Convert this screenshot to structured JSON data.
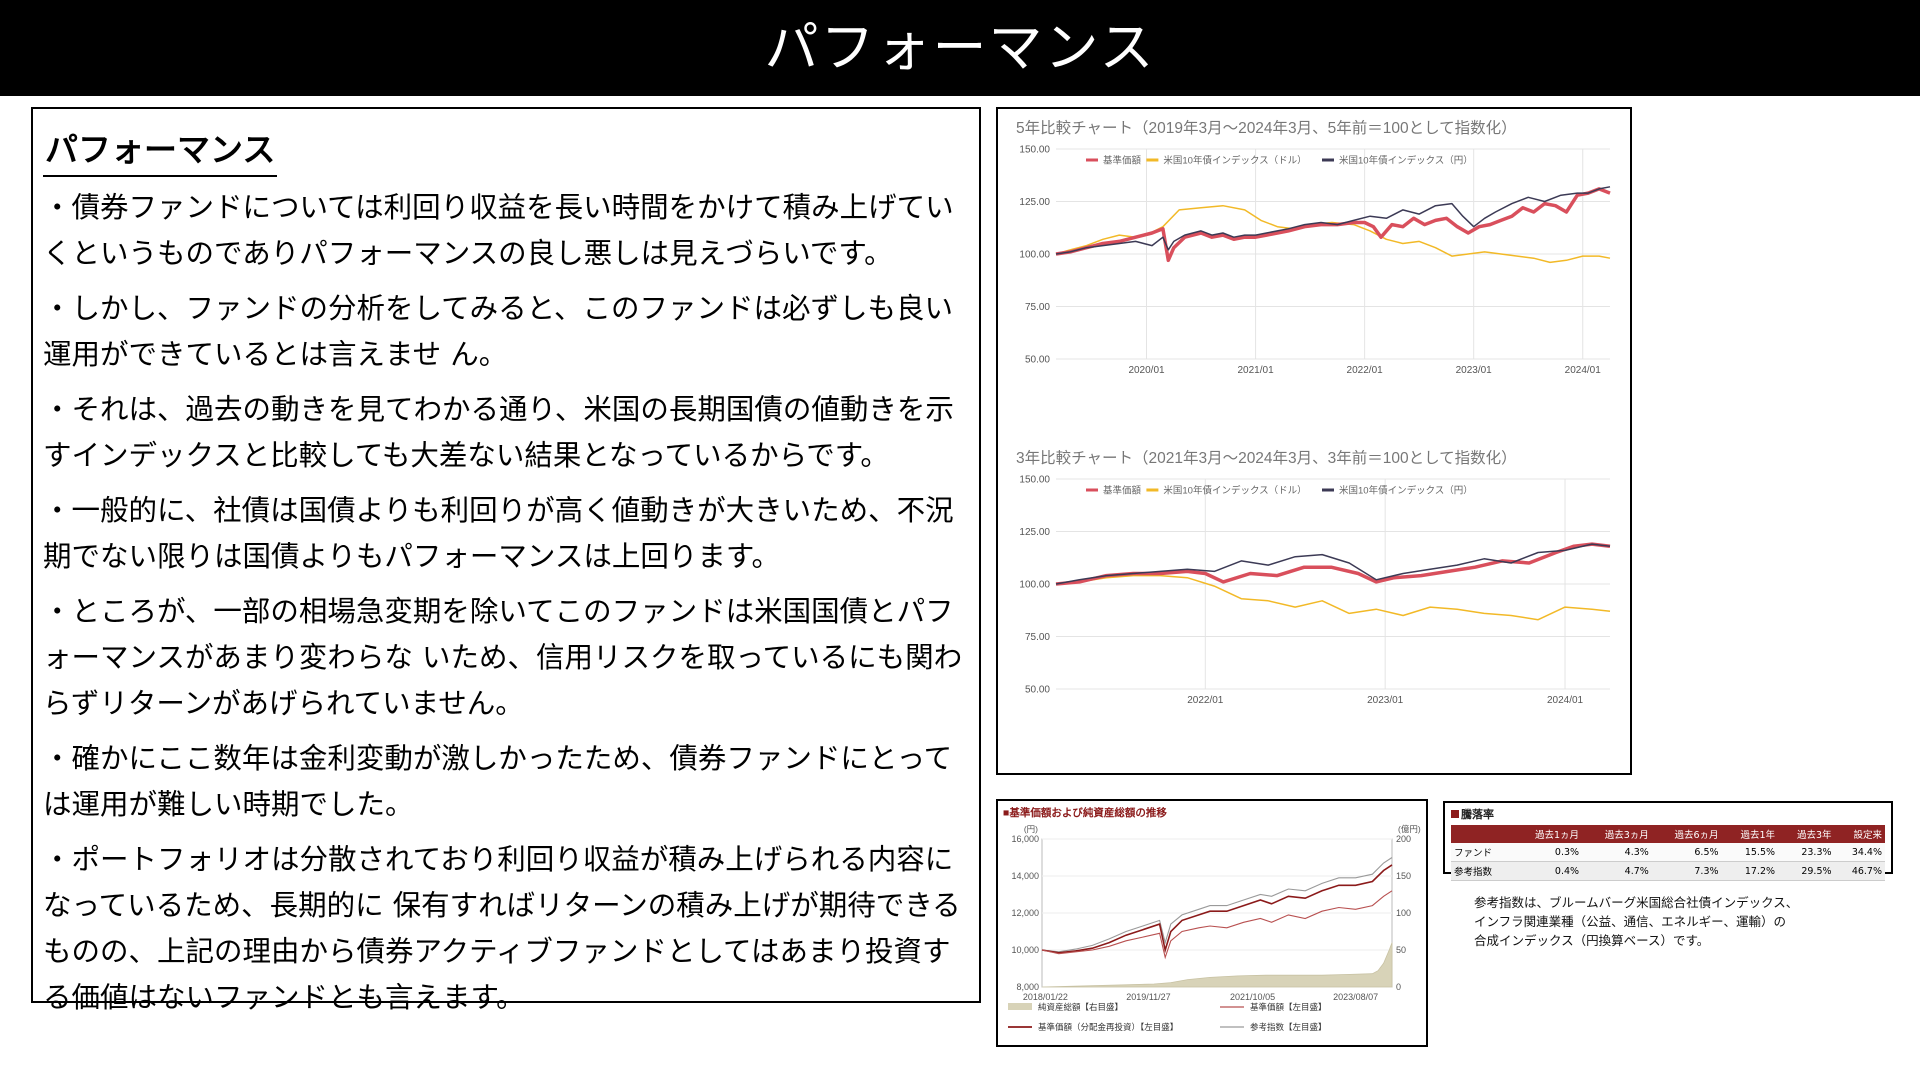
{
  "banner": {
    "title": "パフォーマンス"
  },
  "text": {
    "heading": "パフォーマンス",
    "paragraphs": [
      "・債券ファンドについては利回り収益を長い時間をかけて積み上げていくというものでありパフォーマンスの良し悪しは見えづらいです。",
      "・しかし、ファンドの分析をしてみると、このファンドは必ずしも良い運用ができているとは言えませ ん。",
      "・それは、過去の動きを見てわかる通り、米国の長期国債の値動きを示すインデックスと比較しても大差ない結果となっているからです。",
      "・一般的に、社債は国債よりも利回りが高く値動きが大きいため、不況期でない限りは国債よりもパフォーマンスは上回ります。",
      "・ところが、一部の相場急変期を除いてこのファンドは米国国債とパフォーマンスがあまり変わらな いため、信用リスクを取っているにも関わらずリターンがあげられていません。",
      "・確かにここ数年は金利変動が激しかったため、債券ファンドにとっては運用が難しい時期でした。",
      "・ポートフォリオは分散されており利回り収益が積み上げられる内容になっているため、長期的に 保有すればリターンの積み上げが期待できるものの、上記の理由から債券アクティブファンドとしてはあまり投資する価値はないファンドとも言えます。"
    ]
  },
  "colors": {
    "fund": "#d94f5c",
    "usd_index": "#f2b927",
    "jpy_index": "#3c3a55",
    "nav_red": "#8b1a1a",
    "asset_fill": "#d8d3b8"
  },
  "chart_data": [
    {
      "type": "line",
      "title": "5年比較チャート（2019年3月〜2024年3月、5年前＝100として指数化）",
      "ylim": [
        50,
        150
      ],
      "yticks": [
        "150.00",
        "125.00",
        "100.00",
        "75.00",
        "50.00"
      ],
      "ytick_values": [
        150,
        125,
        100,
        75,
        50
      ],
      "xticks": [
        {
          "label": "2020/01",
          "x": 2020.0
        },
        {
          "label": "2021/01",
          "x": 2021.0
        },
        {
          "label": "2022/01",
          "x": 2022.0
        },
        {
          "label": "2023/01",
          "x": 2023.0
        },
        {
          "label": "2024/01",
          "x": 2024.0
        }
      ],
      "xlim": [
        2019.17,
        2024.25
      ],
      "grid": true,
      "legend_position": "top-left",
      "series": [
        {
          "name": "基準価額",
          "color": "#d94f5c",
          "width": 3.5,
          "x": [
            2019.17,
            2019.3,
            2019.45,
            2019.6,
            2019.75,
            2019.9,
            2020.05,
            2020.15,
            2020.2,
            2020.25,
            2020.35,
            2020.5,
            2020.6,
            2020.7,
            2020.8,
            2020.9,
            2021.0,
            2021.1,
            2021.2,
            2021.3,
            2021.45,
            2021.6,
            2021.75,
            2021.9,
            2022.0,
            2022.08,
            2022.15,
            2022.25,
            2022.35,
            2022.45,
            2022.55,
            2022.65,
            2022.75,
            2022.85,
            2022.95,
            2023.05,
            2023.15,
            2023.25,
            2023.35,
            2023.45,
            2023.55,
            2023.65,
            2023.75,
            2023.85,
            2023.95,
            2024.05,
            2024.15,
            2024.25
          ],
          "y": [
            100,
            101,
            103,
            105,
            106,
            108,
            110,
            112,
            97,
            103,
            108,
            110,
            108,
            109,
            107,
            108,
            108,
            109,
            110,
            111,
            113,
            114,
            114,
            115,
            115,
            113,
            108,
            114,
            113,
            117,
            114,
            116,
            117,
            113,
            110,
            113,
            114,
            116,
            118,
            122,
            120,
            124,
            123,
            120,
            128,
            129,
            131,
            129
          ]
        },
        {
          "name": "米国10年債インデックス（ドル）",
          "color": "#f2b927",
          "width": 1.5,
          "x": [
            2019.17,
            2019.3,
            2019.45,
            2019.6,
            2019.75,
            2019.9,
            2020.0,
            2020.15,
            2020.3,
            2020.5,
            2020.7,
            2020.9,
            2021.05,
            2021.2,
            2021.35,
            2021.5,
            2021.7,
            2021.9,
            2022.05,
            2022.2,
            2022.35,
            2022.5,
            2022.65,
            2022.8,
            2022.95,
            2023.1,
            2023.25,
            2023.4,
            2023.55,
            2023.7,
            2023.85,
            2024.0,
            2024.15,
            2024.25
          ],
          "y": [
            100,
            102,
            104,
            107,
            109,
            108,
            109,
            113,
            121,
            122,
            123,
            121,
            116,
            113,
            112,
            114,
            115,
            114,
            111,
            107,
            105,
            106,
            103,
            99,
            100,
            101,
            100,
            99,
            98,
            96,
            97,
            99,
            99,
            98
          ]
        },
        {
          "name": "米国10年債インデックス（円）",
          "color": "#3c3a55",
          "width": 1.5,
          "x": [
            2019.17,
            2019.3,
            2019.45,
            2019.6,
            2019.75,
            2019.9,
            2020.05,
            2020.15,
            2020.2,
            2020.25,
            2020.35,
            2020.5,
            2020.6,
            2020.7,
            2020.8,
            2020.9,
            2021.0,
            2021.1,
            2021.2,
            2021.3,
            2021.45,
            2021.6,
            2021.75,
            2021.9,
            2022.05,
            2022.2,
            2022.35,
            2022.5,
            2022.65,
            2022.8,
            2022.9,
            2023.0,
            2023.1,
            2023.2,
            2023.35,
            2023.5,
            2023.65,
            2023.8,
            2023.95,
            2024.05,
            2024.15,
            2024.25
          ],
          "y": [
            100,
            101,
            103,
            104,
            105,
            106,
            104,
            108,
            102,
            106,
            109,
            111,
            109,
            110,
            108,
            109,
            109,
            110,
            111,
            112,
            114,
            115,
            114,
            116,
            118,
            117,
            121,
            119,
            123,
            124,
            118,
            113,
            117,
            120,
            124,
            127,
            125,
            128,
            129,
            129,
            131,
            132
          ]
        }
      ]
    },
    {
      "type": "line",
      "title": "3年比較チャート（2021年3月〜2024年3月、3年前＝100として指数化）",
      "ylim": [
        50,
        150
      ],
      "yticks": [
        "150.00",
        "125.00",
        "100.00",
        "75.00",
        "50.00"
      ],
      "ytick_values": [
        150,
        125,
        100,
        75,
        50
      ],
      "xticks": [
        {
          "label": "2022/01",
          "x": 2022.0
        },
        {
          "label": "2023/01",
          "x": 2023.0
        },
        {
          "label": "2024/01",
          "x": 2024.0
        }
      ],
      "xlim": [
        2021.17,
        2024.25
      ],
      "grid": true,
      "legend_position": "top-left",
      "series": [
        {
          "name": "基準価額",
          "color": "#d94f5c",
          "width": 3.5,
          "x": [
            2021.17,
            2021.3,
            2021.45,
            2021.6,
            2021.75,
            2021.9,
            2022.0,
            2022.1,
            2022.25,
            2022.4,
            2022.55,
            2022.7,
            2022.85,
            2022.95,
            2023.05,
            2023.2,
            2023.35,
            2023.5,
            2023.65,
            2023.8,
            2023.95,
            2024.05,
            2024.15,
            2024.25
          ],
          "y": [
            100,
            101,
            104,
            105,
            105,
            106,
            105,
            101,
            105,
            104,
            108,
            108,
            105,
            101,
            103,
            104,
            106,
            108,
            111,
            110,
            115,
            118,
            119,
            118
          ]
        },
        {
          "name": "米国10年債インデックス（ドル）",
          "color": "#f2b927",
          "width": 1.5,
          "x": [
            2021.17,
            2021.3,
            2021.45,
            2021.6,
            2021.75,
            2021.9,
            2022.05,
            2022.2,
            2022.35,
            2022.5,
            2022.65,
            2022.8,
            2022.95,
            2023.1,
            2023.25,
            2023.4,
            2023.55,
            2023.7,
            2023.85,
            2024.0,
            2024.15,
            2024.25
          ],
          "y": [
            100,
            101,
            103,
            104,
            104,
            103,
            99,
            93,
            92,
            89,
            92,
            86,
            88,
            85,
            89,
            88,
            86,
            85,
            83,
            89,
            88,
            87
          ]
        },
        {
          "name": "米国10年債インデックス（円）",
          "color": "#3c3a55",
          "width": 1.5,
          "x": [
            2021.17,
            2021.3,
            2021.45,
            2021.6,
            2021.75,
            2021.9,
            2022.05,
            2022.2,
            2022.35,
            2022.5,
            2022.65,
            2022.8,
            2022.95,
            2023.1,
            2023.25,
            2023.4,
            2023.55,
            2023.7,
            2023.85,
            2024.0,
            2024.15,
            2024.25
          ],
          "y": [
            100,
            102,
            104,
            105,
            106,
            107,
            106,
            111,
            109,
            113,
            114,
            110,
            102,
            105,
            107,
            109,
            112,
            110,
            115,
            116,
            119,
            118
          ]
        }
      ]
    },
    {
      "type": "line",
      "title": "■基準価額および純資産総額の推移",
      "left_unit": "(円)",
      "right_unit": "(億円)",
      "ylim": [
        8000,
        16000
      ],
      "yticks": [
        "16,000",
        "14,000",
        "12,000",
        "10,000",
        "8,000"
      ],
      "ytick_values": [
        16000,
        14000,
        12000,
        10000,
        8000
      ],
      "y2lim": [
        0,
        200
      ],
      "y2ticks": [
        "200",
        "150",
        "100",
        "50",
        "0"
      ],
      "y2tick_values": [
        200,
        150,
        100,
        50,
        0
      ],
      "xticks": [
        {
          "label": "2018/01/22",
          "x": 2018.06
        },
        {
          "label": "2019/11/27",
          "x": 2019.9
        },
        {
          "label": "2021/10/05",
          "x": 2021.76
        },
        {
          "label": "2023/08/07",
          "x": 2023.6
        }
      ],
      "xlim": [
        2018.0,
        2024.25
      ],
      "legend": [
        "純資産総額【右目盛】",
        "基準価額【左目盛】",
        "基準価額（分配金再投資）【左目盛】",
        "参考指数【左目盛】"
      ],
      "legend_colors": [
        "#d8d3b8",
        "#b85050",
        "#8b1a1a",
        "#9a9a9a"
      ],
      "series": [
        {
          "name": "純資産総額【右目盛】",
          "axis": "right",
          "kind": "area",
          "color": "#d8d3b8",
          "x": [
            2018.0,
            2018.5,
            2019.0,
            2019.5,
            2020.0,
            2020.3,
            2020.6,
            2021.0,
            2021.5,
            2022.0,
            2022.5,
            2023.0,
            2023.5,
            2023.9,
            2024.0,
            2024.1,
            2024.2,
            2024.25
          ],
          "y": [
            0,
            1,
            2,
            3,
            4,
            6,
            10,
            13,
            15,
            16,
            16,
            16,
            17,
            18,
            22,
            32,
            50,
            60
          ]
        },
        {
          "name": "基準価額【左目盛】",
          "axis": "left",
          "color": "#b85050",
          "x": [
            2018.0,
            2018.3,
            2018.6,
            2018.9,
            2019.2,
            2019.5,
            2019.8,
            2020.1,
            2020.2,
            2020.3,
            2020.5,
            2020.8,
            2021.0,
            2021.3,
            2021.6,
            2021.9,
            2022.1,
            2022.4,
            2022.7,
            2023.0,
            2023.3,
            2023.6,
            2023.9,
            2024.1,
            2024.25
          ],
          "y": [
            10000,
            9800,
            9900,
            10000,
            10200,
            10500,
            10700,
            10900,
            9600,
            10500,
            11000,
            11200,
            11300,
            11200,
            11500,
            11700,
            11500,
            11900,
            11700,
            12100,
            12300,
            12200,
            12400,
            12900,
            13200
          ]
        },
        {
          "name": "基準価額（分配金再投資）【左目盛】",
          "axis": "left",
          "color": "#8b1a1a",
          "x": [
            2018.0,
            2018.3,
            2018.6,
            2018.9,
            2019.2,
            2019.5,
            2019.8,
            2020.1,
            2020.2,
            2020.3,
            2020.5,
            2020.8,
            2021.0,
            2021.3,
            2021.6,
            2021.9,
            2022.1,
            2022.4,
            2022.7,
            2023.0,
            2023.3,
            2023.6,
            2023.9,
            2024.1,
            2024.25
          ],
          "y": [
            10000,
            9850,
            9950,
            10100,
            10400,
            10800,
            11100,
            11400,
            10000,
            11000,
            11600,
            11900,
            12100,
            12100,
            12400,
            12700,
            12500,
            12900,
            12800,
            13200,
            13500,
            13500,
            13700,
            14300,
            14600
          ]
        },
        {
          "name": "参考指数【左目盛】",
          "axis": "left",
          "color": "#9a9a9a",
          "x": [
            2018.0,
            2018.3,
            2018.6,
            2018.9,
            2019.2,
            2019.5,
            2019.8,
            2020.1,
            2020.2,
            2020.3,
            2020.5,
            2020.8,
            2021.0,
            2021.3,
            2021.6,
            2021.9,
            2022.1,
            2022.4,
            2022.7,
            2023.0,
            2023.3,
            2023.6,
            2023.9,
            2024.1,
            2024.25
          ],
          "y": [
            10000,
            9900,
            10050,
            10250,
            10600,
            11000,
            11300,
            11600,
            10400,
            11400,
            11900,
            12200,
            12400,
            12400,
            12700,
            13000,
            12900,
            13300,
            13200,
            13600,
            13900,
            13900,
            14100,
            14700,
            15000
          ]
        }
      ]
    }
  ],
  "returns_table": {
    "title": "騰落率",
    "headers": [
      "",
      "過去1ヵ月",
      "過去3ヵ月",
      "過去6ヵ月",
      "過去1年",
      "過去3年",
      "設定来"
    ],
    "rows": [
      {
        "label": "ファンド",
        "values": [
          "0.3%",
          "4.3%",
          "6.5%",
          "15.5%",
          "23.3%",
          "34.4%"
        ]
      },
      {
        "label": "参考指数",
        "values": [
          "0.4%",
          "4.7%",
          "7.3%",
          "17.2%",
          "29.5%",
          "46.7%"
        ]
      }
    ]
  },
  "note": {
    "lines": [
      "参考指数は、ブルームバーグ米国総合社債インデックス、",
      "インフラ関連業種（公益、通信、エネルギー、運輸）の",
      "合成インデックス（円換算ベース）です。"
    ]
  }
}
